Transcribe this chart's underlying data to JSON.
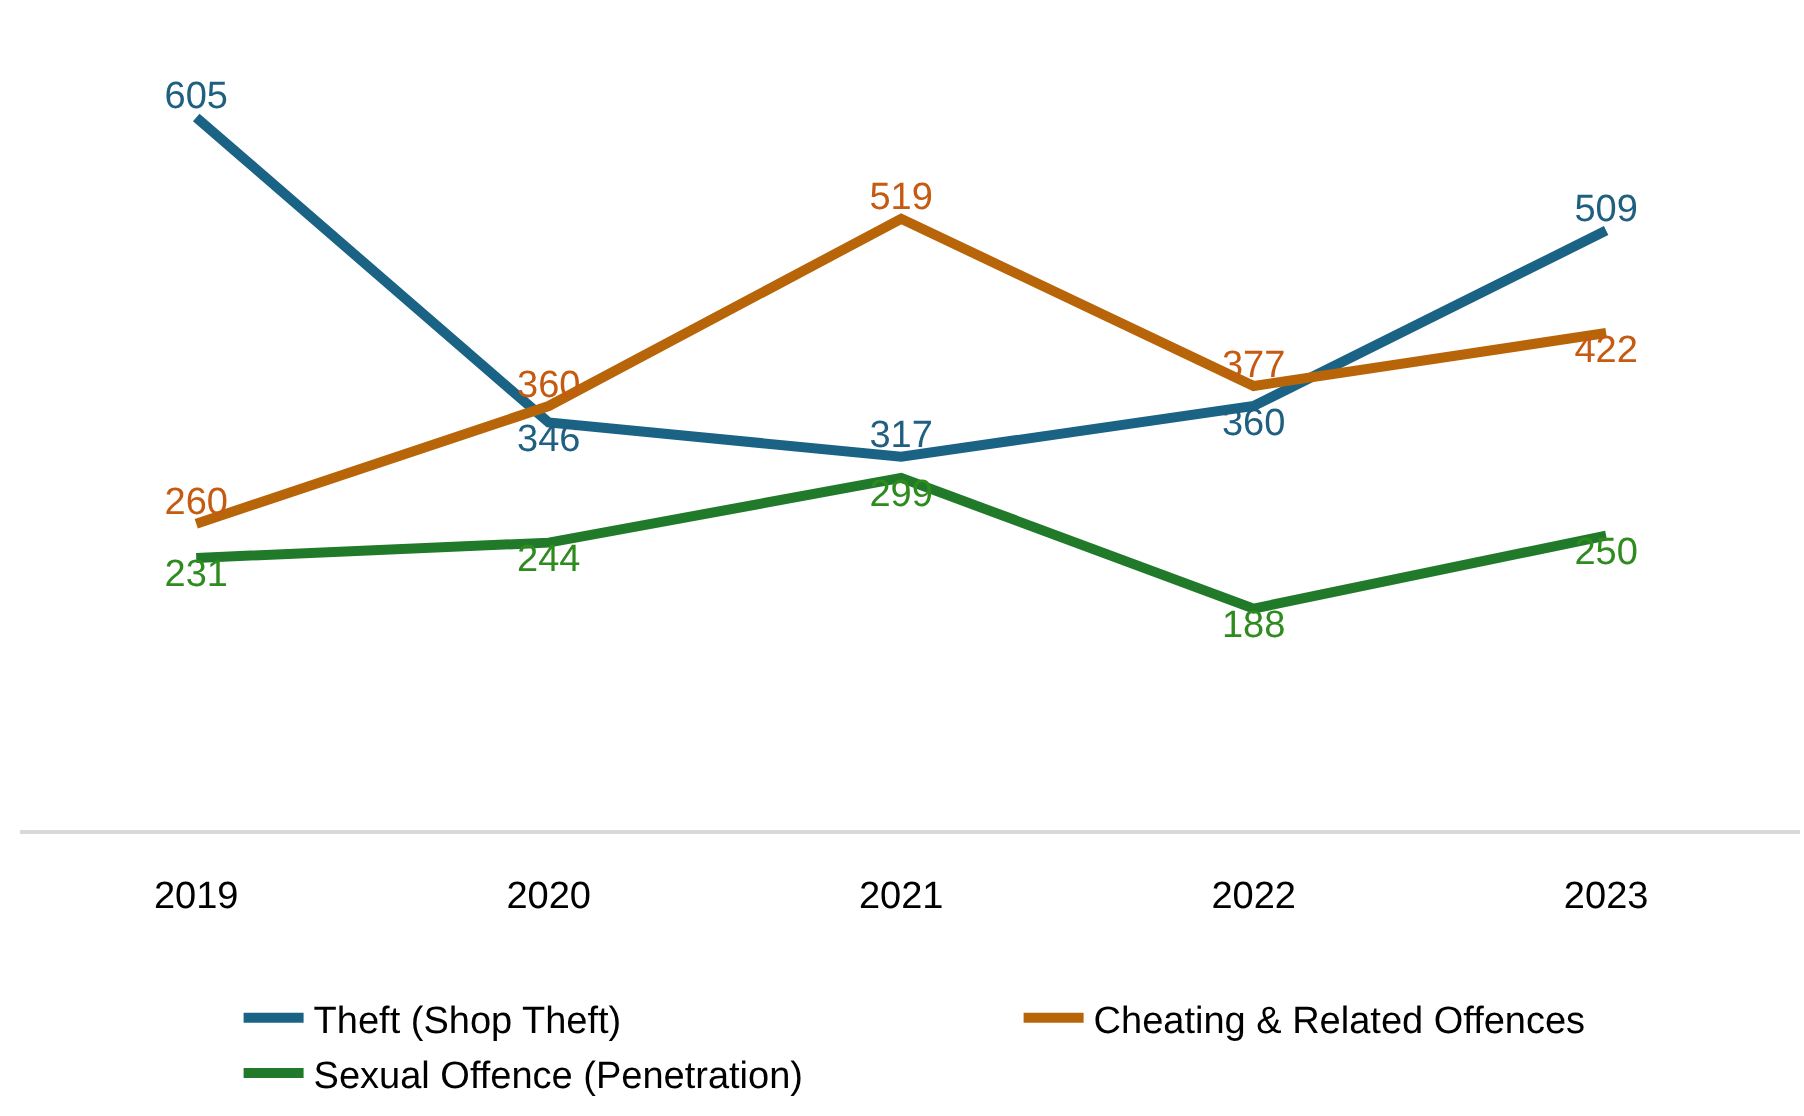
{
  "chart_data": {
    "type": "line",
    "categories": [
      "2019",
      "2020",
      "2021",
      "2022",
      "2023"
    ],
    "series": [
      {
        "name": "Theft (Shop Theft)",
        "color": "#1b6385",
        "values": [
          605,
          346,
          317,
          360,
          509
        ]
      },
      {
        "name": "Cheating & Related Offences",
        "color": "#b8650a",
        "values": [
          260,
          360,
          519,
          377,
          422
        ]
      },
      {
        "name": "Sexual Offence (Penetration)",
        "color": "#217a2a",
        "values": [
          231,
          244,
          299,
          188,
          250
        ]
      }
    ],
    "data_labels": true,
    "legend": "bottom",
    "marker": "none",
    "line_style": "solid",
    "tick_labels": "x"
  }
}
